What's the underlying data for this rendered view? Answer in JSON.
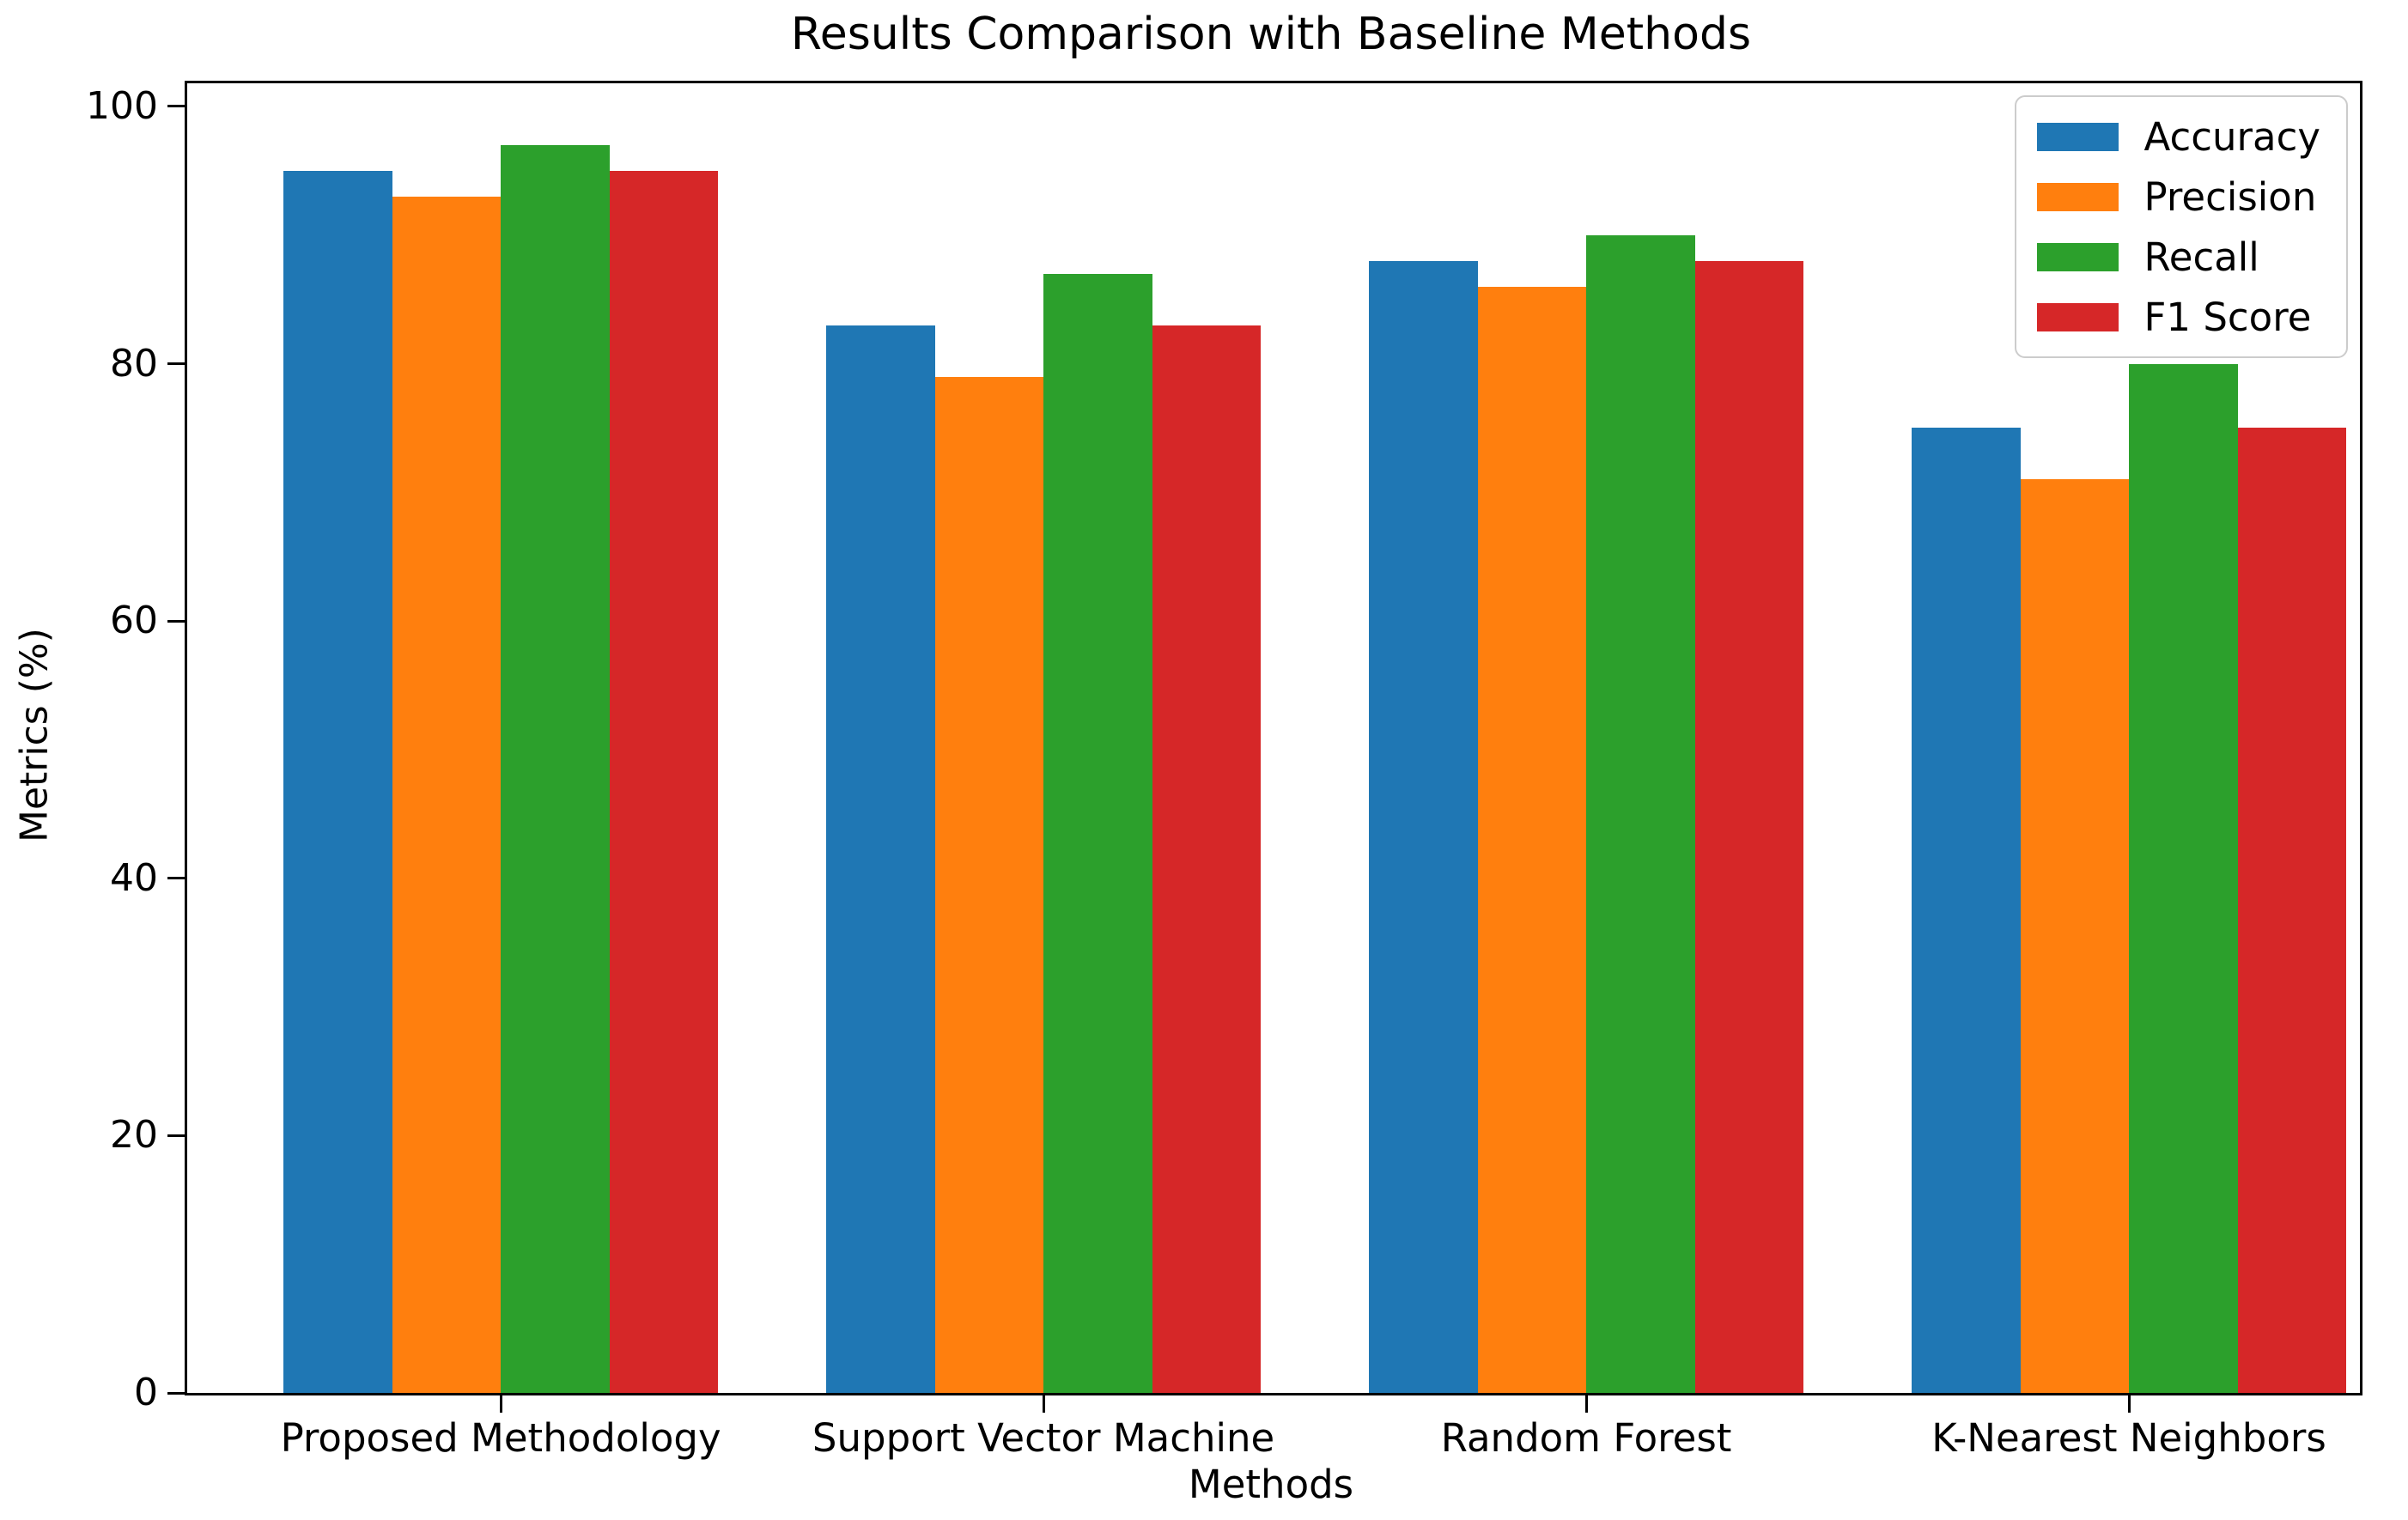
{
  "chart_data": {
    "type": "bar",
    "title": "Results Comparison with Baseline Methods",
    "xlabel": "Methods",
    "ylabel": "Metrics (%)",
    "categories": [
      "Proposed Methodology",
      "Support Vector Machine",
      "Random Forest",
      "K-Nearest Neighbors"
    ],
    "series": [
      {
        "name": "Accuracy",
        "color": "#1f77b4",
        "values": [
          95,
          83,
          88,
          75
        ]
      },
      {
        "name": "Precision",
        "color": "#ff7f0e",
        "values": [
          93,
          79,
          86,
          71
        ]
      },
      {
        "name": "Recall",
        "color": "#2ca02c",
        "values": [
          97,
          87,
          90,
          80
        ]
      },
      {
        "name": "F1 Score",
        "color": "#d62728",
        "values": [
          95,
          83,
          88,
          75
        ]
      }
    ],
    "yticks": [
      0,
      20,
      40,
      60,
      80,
      100
    ],
    "ylim": [
      0,
      101.8
    ],
    "bar_width_frac": 0.05,
    "group_center_fracs": [
      0.1443,
      0.3941,
      0.6439,
      0.8937
    ],
    "legend_position": "upper right",
    "grid": false,
    "spine_color": "#000000",
    "background_color": "#ffffff"
  }
}
